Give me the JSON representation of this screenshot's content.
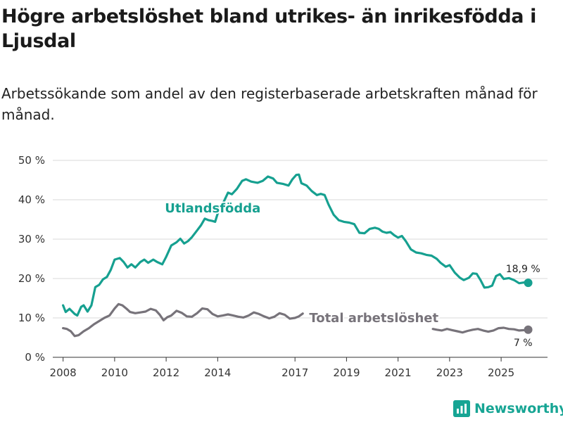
{
  "header": {
    "title": "Högre arbetslöshet bland utrikes- än inrikesfödda i Ljusdal",
    "subtitle": "Arbetssökande som andel av den registerbaserade arbetskraften månad för månad."
  },
  "brand": {
    "name": "Newsworthy",
    "color": "#17a594"
  },
  "chart_data": {
    "type": "line",
    "title": "Högre arbetslöshet bland utrikes- än inrikesfödda i Ljusdal",
    "subtitle": "Arbetssökande som andel av den registerbaserade arbetskraften månad för månad.",
    "xlabel": "",
    "ylabel": "",
    "ylim": [
      0,
      50
    ],
    "xlim": [
      2007.6,
      2026.8
    ],
    "y_ticks": [
      0,
      10,
      20,
      30,
      40,
      50
    ],
    "y_tick_labels": [
      "0 %",
      "10 %",
      "20 %",
      "30 %",
      "40 %",
      "50 %"
    ],
    "x_ticks": [
      2008,
      2010,
      2012,
      2014,
      2017,
      2019,
      2021,
      2023,
      2025
    ],
    "x_tick_labels": [
      "2008",
      "2010",
      "2012",
      "2014",
      "2017",
      "2019",
      "2021",
      "2023",
      "2025"
    ],
    "grid": true,
    "series": [
      {
        "name": "Utlandsfödda",
        "color": "#16a090",
        "end_label": "18,9 %",
        "segments": [
          [
            [
              2008.0,
              13.2
            ],
            [
              2008.1,
              11.5
            ],
            [
              2008.25,
              12.3
            ],
            [
              2008.45,
              11.0
            ],
            [
              2008.55,
              10.6
            ],
            [
              2008.7,
              12.8
            ],
            [
              2008.8,
              13.2
            ],
            [
              2008.95,
              11.6
            ],
            [
              2009.1,
              13.2
            ],
            [
              2009.25,
              17.8
            ],
            [
              2009.4,
              18.4
            ],
            [
              2009.55,
              19.8
            ],
            [
              2009.7,
              20.4
            ],
            [
              2009.85,
              22.2
            ],
            [
              2010.0,
              24.8
            ],
            [
              2010.2,
              25.2
            ],
            [
              2010.35,
              24.2
            ],
            [
              2010.5,
              22.8
            ],
            [
              2010.65,
              23.6
            ],
            [
              2010.8,
              22.8
            ],
            [
              2011.0,
              24.2
            ],
            [
              2011.15,
              24.8
            ],
            [
              2011.3,
              24.0
            ],
            [
              2011.5,
              24.8
            ],
            [
              2011.65,
              24.2
            ],
            [
              2011.85,
              23.6
            ],
            [
              2012.0,
              25.5
            ],
            [
              2012.2,
              28.4
            ],
            [
              2012.4,
              29.2
            ],
            [
              2012.55,
              30.1
            ],
            [
              2012.7,
              28.9
            ],
            [
              2012.85,
              29.5
            ],
            [
              2013.0,
              30.5
            ],
            [
              2013.2,
              32.2
            ],
            [
              2013.35,
              33.5
            ],
            [
              2013.5,
              35.2
            ],
            [
              2013.65,
              34.8
            ],
            [
              2013.8,
              34.6
            ],
            [
              2013.9,
              34.4
            ],
            [
              2014.0,
              36.5
            ],
            [
              2014.2,
              39.0
            ],
            [
              2014.4,
              41.8
            ],
            [
              2014.55,
              41.4
            ],
            [
              2014.75,
              42.8
            ],
            [
              2014.95,
              44.8
            ],
            [
              2015.1,
              45.2
            ],
            [
              2015.3,
              44.6
            ],
            [
              2015.55,
              44.3
            ],
            [
              2015.75,
              44.8
            ],
            [
              2015.95,
              45.9
            ],
            [
              2016.15,
              45.4
            ],
            [
              2016.3,
              44.3
            ],
            [
              2016.55,
              44.0
            ],
            [
              2016.75,
              43.6
            ],
            [
              2016.9,
              45.2
            ],
            [
              2017.05,
              46.3
            ],
            [
              2017.15,
              46.4
            ],
            [
              2017.25,
              44.2
            ],
            [
              2017.45,
              43.6
            ],
            [
              2017.65,
              42.2
            ],
            [
              2017.85,
              41.2
            ],
            [
              2018.0,
              41.5
            ],
            [
              2018.15,
              41.2
            ],
            [
              2018.3,
              38.8
            ],
            [
              2018.5,
              36.2
            ],
            [
              2018.7,
              34.8
            ],
            [
              2018.9,
              34.4
            ],
            [
              2019.1,
              34.2
            ],
            [
              2019.3,
              33.8
            ],
            [
              2019.5,
              31.6
            ],
            [
              2019.7,
              31.5
            ],
            [
              2019.9,
              32.6
            ],
            [
              2020.1,
              32.9
            ],
            [
              2020.25,
              32.6
            ],
            [
              2020.4,
              31.9
            ],
            [
              2020.55,
              31.6
            ],
            [
              2020.7,
              31.8
            ],
            [
              2020.85,
              31.0
            ],
            [
              2021.0,
              30.4
            ],
            [
              2021.15,
              30.8
            ],
            [
              2021.3,
              29.5
            ],
            [
              2021.5,
              27.4
            ],
            [
              2021.7,
              26.6
            ],
            [
              2021.9,
              26.4
            ],
            [
              2022.1,
              26.0
            ],
            [
              2022.3,
              25.8
            ],
            [
              2022.5,
              25.0
            ],
            [
              2022.65,
              24.0
            ],
            [
              2022.85,
              23.0
            ],
            [
              2023.0,
              23.4
            ],
            [
              2023.2,
              21.5
            ],
            [
              2023.4,
              20.2
            ],
            [
              2023.55,
              19.6
            ],
            [
              2023.75,
              20.2
            ],
            [
              2023.9,
              21.3
            ],
            [
              2024.05,
              21.2
            ],
            [
              2024.2,
              19.6
            ],
            [
              2024.35,
              17.7
            ],
            [
              2024.5,
              17.8
            ],
            [
              2024.65,
              18.2
            ],
            [
              2024.8,
              20.6
            ],
            [
              2024.95,
              21.1
            ],
            [
              2025.1,
              19.9
            ],
            [
              2025.3,
              20.1
            ],
            [
              2025.5,
              19.6
            ],
            [
              2025.7,
              18.8
            ],
            [
              2025.9,
              19.0
            ],
            [
              2026.05,
              18.9
            ]
          ]
        ]
      },
      {
        "name": "Total arbetslöshet",
        "color": "#77737a",
        "end_label": "7 %",
        "segments": [
          [
            [
              2008.0,
              7.4
            ],
            [
              2008.15,
              7.2
            ],
            [
              2008.3,
              6.6
            ],
            [
              2008.45,
              5.4
            ],
            [
              2008.6,
              5.6
            ],
            [
              2008.8,
              6.6
            ],
            [
              2009.0,
              7.4
            ],
            [
              2009.2,
              8.4
            ],
            [
              2009.4,
              9.2
            ],
            [
              2009.6,
              10.0
            ],
            [
              2009.8,
              10.6
            ],
            [
              2010.0,
              12.4
            ],
            [
              2010.15,
              13.5
            ],
            [
              2010.3,
              13.2
            ],
            [
              2010.45,
              12.4
            ],
            [
              2010.6,
              11.5
            ],
            [
              2010.8,
              11.2
            ],
            [
              2011.0,
              11.4
            ],
            [
              2011.2,
              11.6
            ],
            [
              2011.4,
              12.3
            ],
            [
              2011.6,
              11.9
            ],
            [
              2011.75,
              10.8
            ],
            [
              2011.9,
              9.4
            ],
            [
              2012.05,
              10.2
            ],
            [
              2012.2,
              10.6
            ],
            [
              2012.4,
              11.8
            ],
            [
              2012.6,
              11.3
            ],
            [
              2012.8,
              10.4
            ],
            [
              2013.0,
              10.3
            ],
            [
              2013.2,
              11.2
            ],
            [
              2013.4,
              12.4
            ],
            [
              2013.6,
              12.2
            ],
            [
              2013.8,
              11.0
            ],
            [
              2014.0,
              10.4
            ],
            [
              2014.2,
              10.6
            ],
            [
              2014.4,
              10.9
            ],
            [
              2014.6,
              10.6
            ],
            [
              2014.8,
              10.3
            ],
            [
              2015.0,
              10.1
            ],
            [
              2015.2,
              10.6
            ],
            [
              2015.4,
              11.4
            ],
            [
              2015.6,
              11.0
            ],
            [
              2015.8,
              10.4
            ],
            [
              2016.0,
              9.9
            ],
            [
              2016.2,
              10.3
            ],
            [
              2016.4,
              11.2
            ],
            [
              2016.6,
              10.8
            ],
            [
              2016.8,
              9.8
            ],
            [
              2017.0,
              10.0
            ],
            [
              2017.15,
              10.4
            ],
            [
              2017.3,
              11.1
            ]
          ],
          [
            [
              2022.35,
              7.2
            ],
            [
              2022.5,
              7.0
            ],
            [
              2022.7,
              6.8
            ],
            [
              2022.9,
              7.2
            ],
            [
              2023.1,
              6.9
            ],
            [
              2023.3,
              6.6
            ],
            [
              2023.5,
              6.3
            ],
            [
              2023.7,
              6.7
            ],
            [
              2023.9,
              7.0
            ],
            [
              2024.1,
              7.2
            ],
            [
              2024.3,
              6.8
            ],
            [
              2024.5,
              6.5
            ],
            [
              2024.7,
              6.8
            ],
            [
              2024.9,
              7.4
            ],
            [
              2025.1,
              7.5
            ],
            [
              2025.3,
              7.2
            ],
            [
              2025.5,
              7.1
            ],
            [
              2025.7,
              6.8
            ],
            [
              2025.9,
              6.9
            ],
            [
              2026.05,
              7.0
            ]
          ]
        ]
      }
    ]
  }
}
